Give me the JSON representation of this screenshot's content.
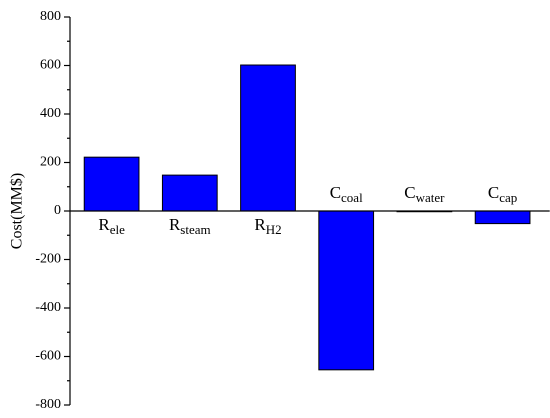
{
  "chart_data": {
    "type": "bar",
    "y_label": "Cost(MM$)",
    "categories": [
      {
        "text": "R",
        "subscript": "ele"
      },
      {
        "text": "R",
        "subscript": "steam"
      },
      {
        "text": "R",
        "subscript": "H2"
      },
      {
        "text": "C",
        "subscript": "coal"
      },
      {
        "text": "C",
        "subscript": "water"
      },
      {
        "text": "C",
        "subscript": "cap"
      }
    ],
    "values": [
      222,
      148,
      602,
      -655,
      -3,
      -52
    ],
    "color": "#0000ff",
    "ylim": [
      -800,
      800
    ],
    "yticks": [
      -800,
      -600,
      -400,
      -200,
      0,
      200,
      400,
      600,
      800
    ],
    "grid": false
  }
}
